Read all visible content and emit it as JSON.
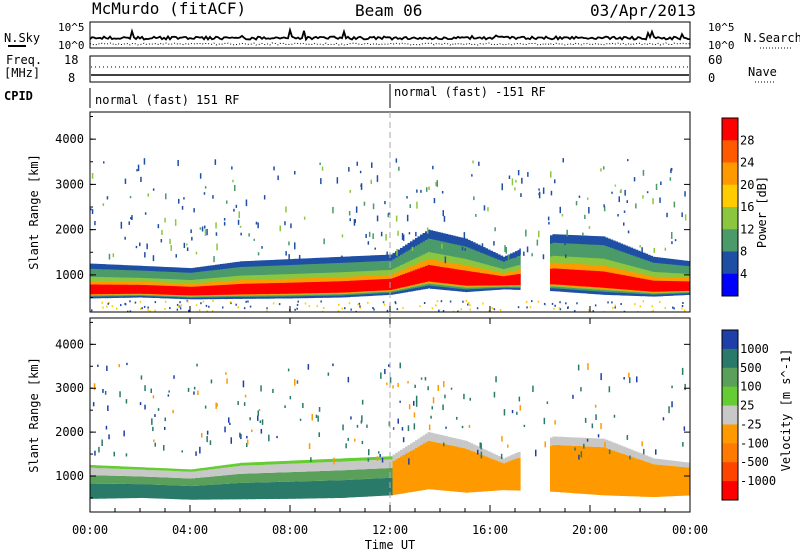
{
  "header": {
    "station": "McMurdo (fitACF)",
    "beam": "Beam 06",
    "date": "03/Apr/2013"
  },
  "top_panels": {
    "nsky_label": "N.Sky",
    "nsearch_label": "N.Search",
    "noise_ticks_left": [
      "10^5",
      "10^0"
    ],
    "noise_ticks_right": [
      "10^5",
      "10^0"
    ],
    "freq_label_1": "Freq.",
    "freq_label_2": "[MHz]",
    "freq_ticks": [
      "18",
      "8"
    ],
    "nave_ticks": [
      "60",
      "0"
    ],
    "nave_label": "Nave",
    "cpid_label": "CPID",
    "cpid_segments": [
      "normal (fast) 151 RF",
      "normal (fast) -151 RF"
    ]
  },
  "chart_data": [
    {
      "type": "heatmap",
      "panel": "power",
      "ylabel": "Slant Range [km]",
      "xlabel": "Time UT",
      "x_ticks": [
        "00:00",
        "04:00",
        "08:00",
        "12:00",
        "16:00",
        "20:00",
        "00:00"
      ],
      "x_range_hours": [
        0,
        24
      ],
      "y_ticks": [
        1000,
        2000,
        3000,
        4000
      ],
      "ylim": [
        180,
        4600
      ],
      "colorbar_label": "Power [dB]",
      "colorbar_ticks": [
        "28",
        "24",
        "20",
        "16",
        "12",
        "8",
        "4"
      ],
      "colorbar_colors": [
        "#ff0000",
        "#ff5a00",
        "#ff9900",
        "#ffcc00",
        "#8cc63f",
        "#4a9a6a",
        "#1f4fa5",
        "#0000ff"
      ],
      "echo_band": [
        {
          "hour": 0.0,
          "lower_km": 480,
          "upper_km": 1250
        },
        {
          "hour": 2.0,
          "lower_km": 500,
          "upper_km": 1200
        },
        {
          "hour": 4.0,
          "lower_km": 460,
          "upper_km": 1150
        },
        {
          "hour": 6.0,
          "lower_km": 470,
          "upper_km": 1300
        },
        {
          "hour": 8.0,
          "lower_km": 480,
          "upper_km": 1350
        },
        {
          "hour": 10.0,
          "lower_km": 500,
          "upper_km": 1400
        },
        {
          "hour": 12.0,
          "lower_km": 560,
          "upper_km": 1450
        },
        {
          "hour": 13.5,
          "lower_km": 700,
          "upper_km": 2000
        },
        {
          "hour": 15.0,
          "lower_km": 620,
          "upper_km": 1800
        },
        {
          "hour": 16.5,
          "lower_km": 680,
          "upper_km": 1400
        },
        {
          "hour": 18.5,
          "lower_km": 640,
          "upper_km": 1900
        },
        {
          "hour": 20.5,
          "lower_km": 560,
          "upper_km": 1850
        },
        {
          "hour": 22.5,
          "lower_km": 520,
          "upper_km": 1400
        },
        {
          "hour": 24.0,
          "lower_km": 560,
          "upper_km": 1300
        }
      ]
    },
    {
      "type": "heatmap",
      "panel": "velocity",
      "ylabel": "Slant Range [km]",
      "xlabel": "Time UT",
      "x_ticks": [
        "00:00",
        "04:00",
        "08:00",
        "12:00",
        "16:00",
        "20:00",
        "00:00"
      ],
      "x_range_hours": [
        0,
        24
      ],
      "y_ticks": [
        1000,
        2000,
        3000,
        4000
      ],
      "ylim": [
        180,
        4600
      ],
      "colorbar_label": "Velocity [m s^-1]",
      "colorbar_ticks": [
        "1000",
        "500",
        "100",
        "25",
        "-25",
        "-100",
        "-500",
        "-1000"
      ],
      "colorbar_colors": [
        "#1f3fa8",
        "#2a7a6a",
        "#5aa05a",
        "#66cc33",
        "#c8c8c8",
        "#ff9900",
        "#ff7a00",
        "#ff4400",
        "#ff0000"
      ],
      "regions": [
        {
          "hours": [
            0,
            12
          ],
          "lower_km": 480,
          "upper_km": 1300,
          "velocity": "25 to 500 (green)"
        },
        {
          "hours": [
            12,
            17.5
          ],
          "lower_km": 600,
          "upper_km": 1700,
          "velocity": "-100 (orange)"
        },
        {
          "hours": [
            18.5,
            24
          ],
          "lower_km": 560,
          "upper_km": 1800,
          "velocity": "-100 (orange)"
        }
      ]
    }
  ]
}
